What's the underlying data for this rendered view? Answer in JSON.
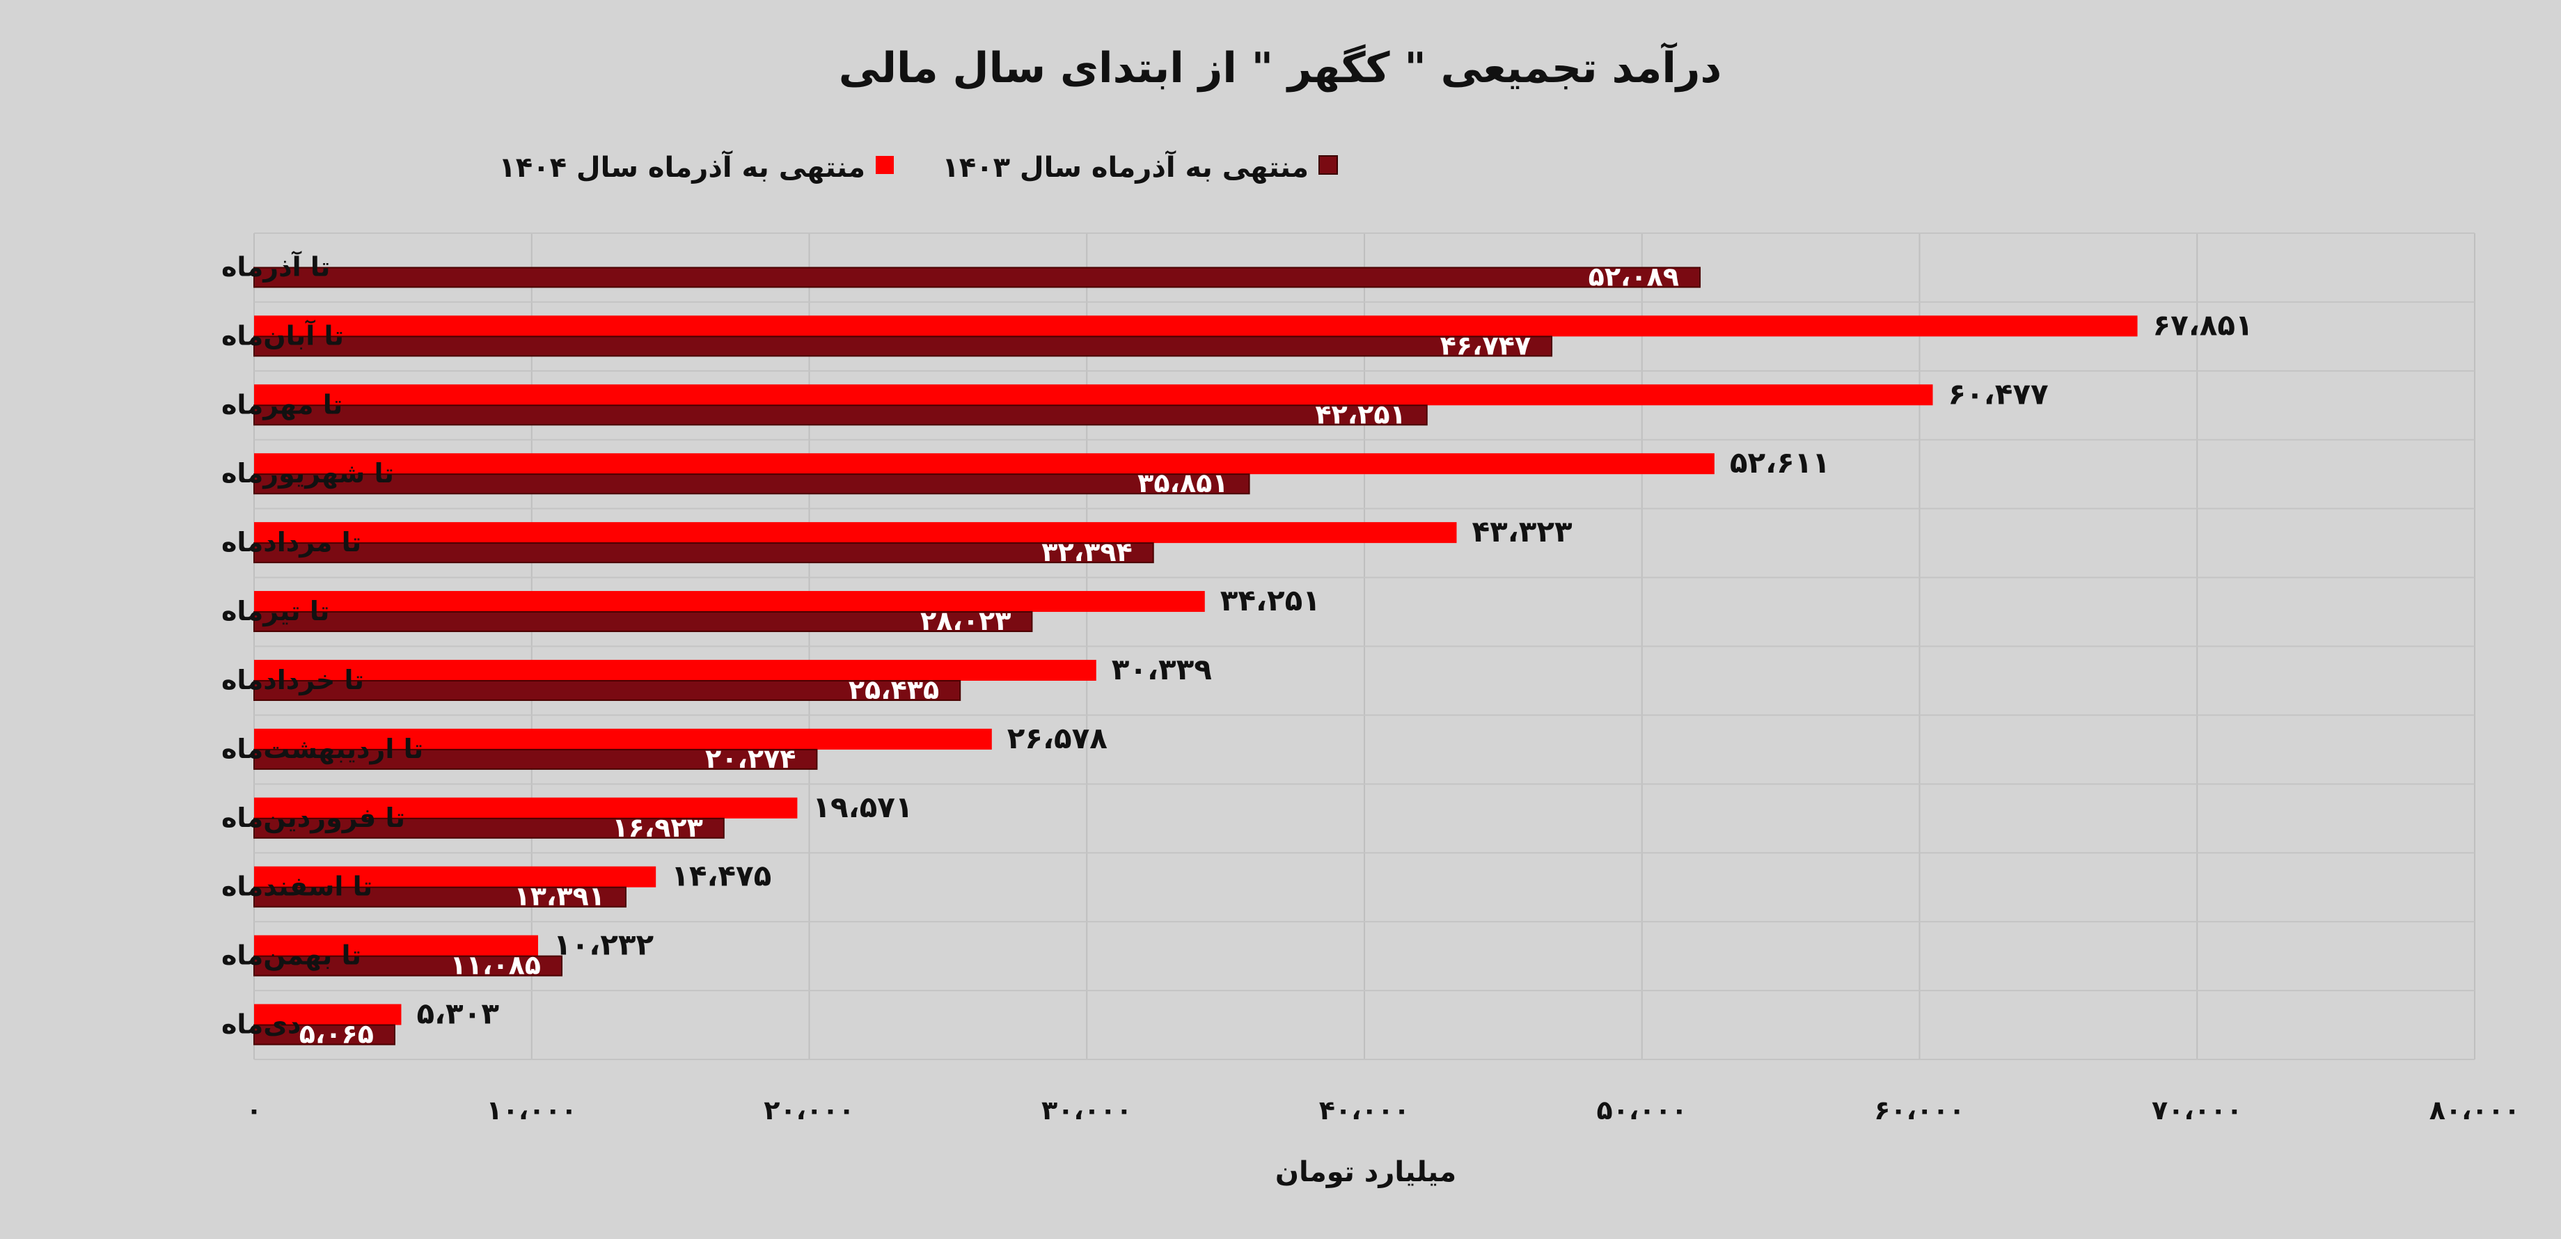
{
  "chart_data": {
    "type": "bar",
    "orientation": "horizontal",
    "title": "درآمد تجمیعی \" کگهر \" از ابتدای سال مالی",
    "xlabel": "میلیارد تومان",
    "ylabel": "",
    "xlim": [
      0,
      80000
    ],
    "ticks": [
      0,
      10000,
      20000,
      30000,
      40000,
      50000,
      60000,
      70000,
      80000
    ],
    "tick_labels": [
      "۰",
      "۱۰،۰۰۰",
      "۲۰،۰۰۰",
      "۳۰،۰۰۰",
      "۴۰،۰۰۰",
      "۵۰،۰۰۰",
      "۶۰،۰۰۰",
      "۷۰،۰۰۰",
      "۸۰،۰۰۰"
    ],
    "grid": true,
    "legend_position": "top",
    "categories": [
      "تا آذرماه",
      "تا آبان‌ماه",
      "تا مهرماه",
      "تا شهریورماه",
      "تا مردادماه",
      "تا تیرماه",
      "تا خردادماه",
      "تا اردیبهشت‌ماه",
      "تا فروردین‌ماه",
      "تا اسفندماه",
      "تا بهمن‌ماه",
      "دی‌ماه"
    ],
    "series": [
      {
        "name": "منتهی به آذرماه سال ۱۴۰۳",
        "color": "#7a0a12",
        "values": [
          52089,
          46747,
          42251,
          35851,
          32394,
          28023,
          25435,
          20274,
          16923,
          13391,
          11085,
          5065
        ],
        "labels": [
          "۵۲،۰۸۹",
          "۴۶،۷۴۷",
          "۴۲،۲۵۱",
          "۳۵،۸۵۱",
          "۳۲،۳۹۴",
          "۲۸،۰۲۳",
          "۲۵،۴۳۵",
          "۲۰،۲۷۴",
          "۱۶،۹۲۳",
          "۱۳،۳۹۱",
          "۱۱،۰۸۵",
          "۵،۰۶۵"
        ]
      },
      {
        "name": "منتهی به آذرماه سال ۱۴۰۴",
        "color": "#ff0000",
        "values": [
          null,
          67851,
          60477,
          52611,
          43323,
          34251,
          30339,
          26578,
          19571,
          14475,
          10232,
          5303
        ],
        "labels": [
          "",
          "۶۷،۸۵۱",
          "۶۰،۴۷۷",
          "۵۲،۶۱۱",
          "۴۳،۳۲۳",
          "۳۴،۲۵۱",
          "۳۰،۳۳۹",
          "۲۶،۵۷۸",
          "۱۹،۵۷۱",
          "۱۴،۴۷۵",
          "۱۰،۲۳۲",
          "۵،۳۰۳"
        ]
      }
    ]
  }
}
